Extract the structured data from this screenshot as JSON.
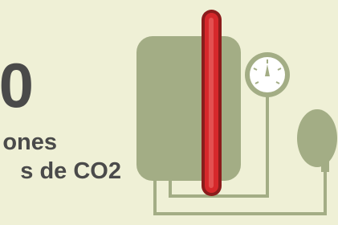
{
  "headline": {
    "big": "0",
    "line1": "ones",
    "line2": "s de CO2"
  }
}
